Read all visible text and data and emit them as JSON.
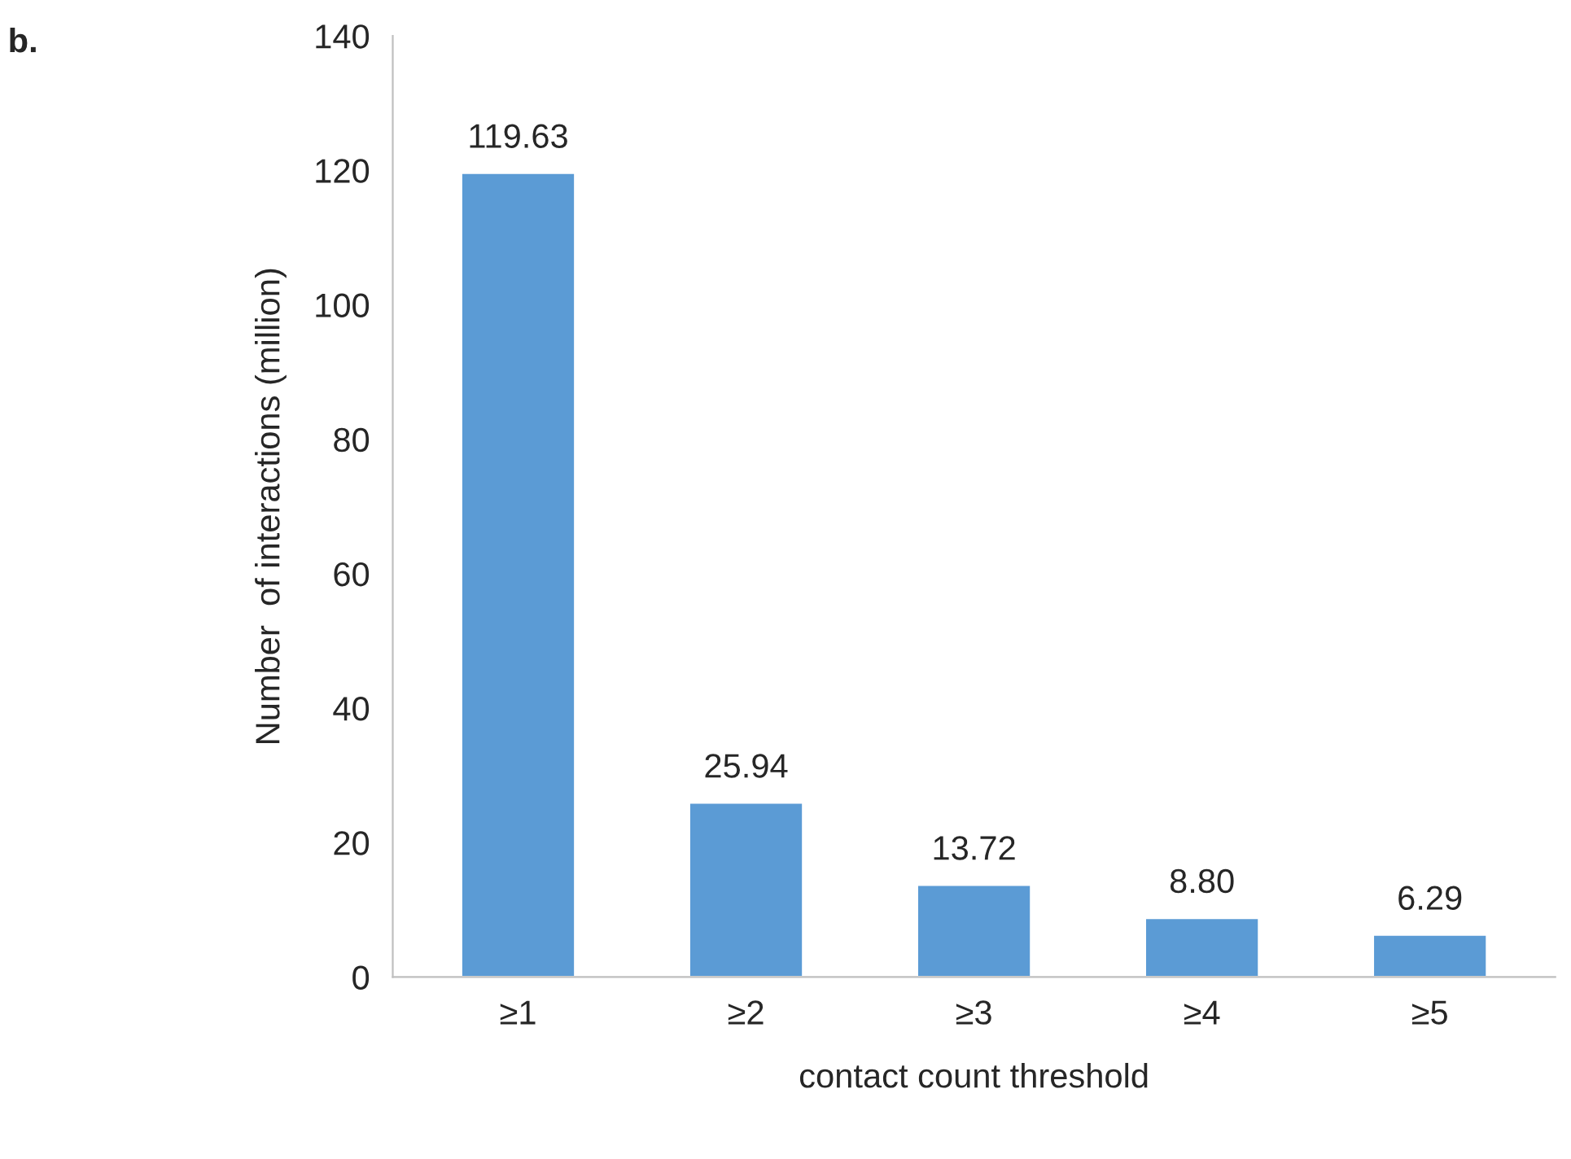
{
  "chart_data": {
    "type": "bar",
    "title": "b.",
    "xlabel": "contact count threshold",
    "ylabel": "Number  of interactions (million)",
    "categories": [
      "≥1",
      "≥2",
      "≥3",
      "≥4",
      "≥5"
    ],
    "values": [
      119.63,
      25.94,
      13.72,
      8.8,
      6.29
    ],
    "value_labels": [
      "119.63",
      "25.94",
      "13.72",
      "8.80",
      "6.29"
    ],
    "color": "#5b9bd5",
    "ylim": [
      0,
      140
    ],
    "yticks": [
      0,
      20,
      40,
      60,
      80,
      100,
      120,
      140
    ],
    "grid": false,
    "legend": false
  }
}
